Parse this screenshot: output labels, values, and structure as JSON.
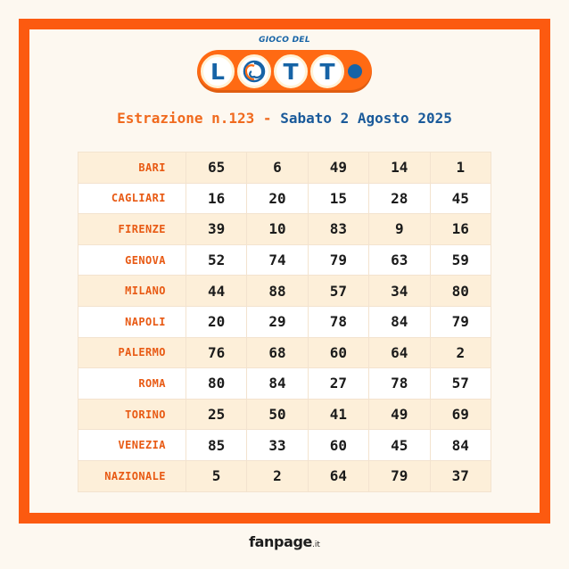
{
  "logo": {
    "top_text": "GIOCO DEL",
    "letters": [
      "L",
      "T",
      "T"
    ],
    "ball_icon": "swirl-o-icon",
    "colors": {
      "orange": "#ff6a13",
      "blue": "#1663a6"
    }
  },
  "heading": {
    "draw_label": "Estrazione n.123 -",
    "date_label": "Sabato 2 Agosto 2025"
  },
  "draws": [
    {
      "city": "BARI",
      "numbers": [
        "65",
        "6",
        "49",
        "14",
        "1"
      ]
    },
    {
      "city": "CAGLIARI",
      "numbers": [
        "16",
        "20",
        "15",
        "28",
        "45"
      ]
    },
    {
      "city": "FIRENZE",
      "numbers": [
        "39",
        "10",
        "83",
        "9",
        "16"
      ]
    },
    {
      "city": "GENOVA",
      "numbers": [
        "52",
        "74",
        "79",
        "63",
        "59"
      ]
    },
    {
      "city": "MILANO",
      "numbers": [
        "44",
        "88",
        "57",
        "34",
        "80"
      ]
    },
    {
      "city": "NAPOLI",
      "numbers": [
        "20",
        "29",
        "78",
        "84",
        "79"
      ]
    },
    {
      "city": "PALERMO",
      "numbers": [
        "76",
        "68",
        "60",
        "64",
        "2"
      ]
    },
    {
      "city": "ROMA",
      "numbers": [
        "80",
        "84",
        "27",
        "78",
        "57"
      ]
    },
    {
      "city": "TORINO",
      "numbers": [
        "25",
        "50",
        "41",
        "49",
        "69"
      ]
    },
    {
      "city": "VENEZIA",
      "numbers": [
        "85",
        "33",
        "60",
        "45",
        "84"
      ]
    },
    {
      "city": "NAZIONALE",
      "numbers": [
        "5",
        "2",
        "64",
        "79",
        "37"
      ]
    }
  ],
  "footer": {
    "brand": "fanpage",
    "tld": ".it"
  },
  "colors": {
    "frame": "#fc5a10",
    "background": "#fdf8f0",
    "city_text": "#e85a14",
    "row_alt": "#fdefd9"
  }
}
